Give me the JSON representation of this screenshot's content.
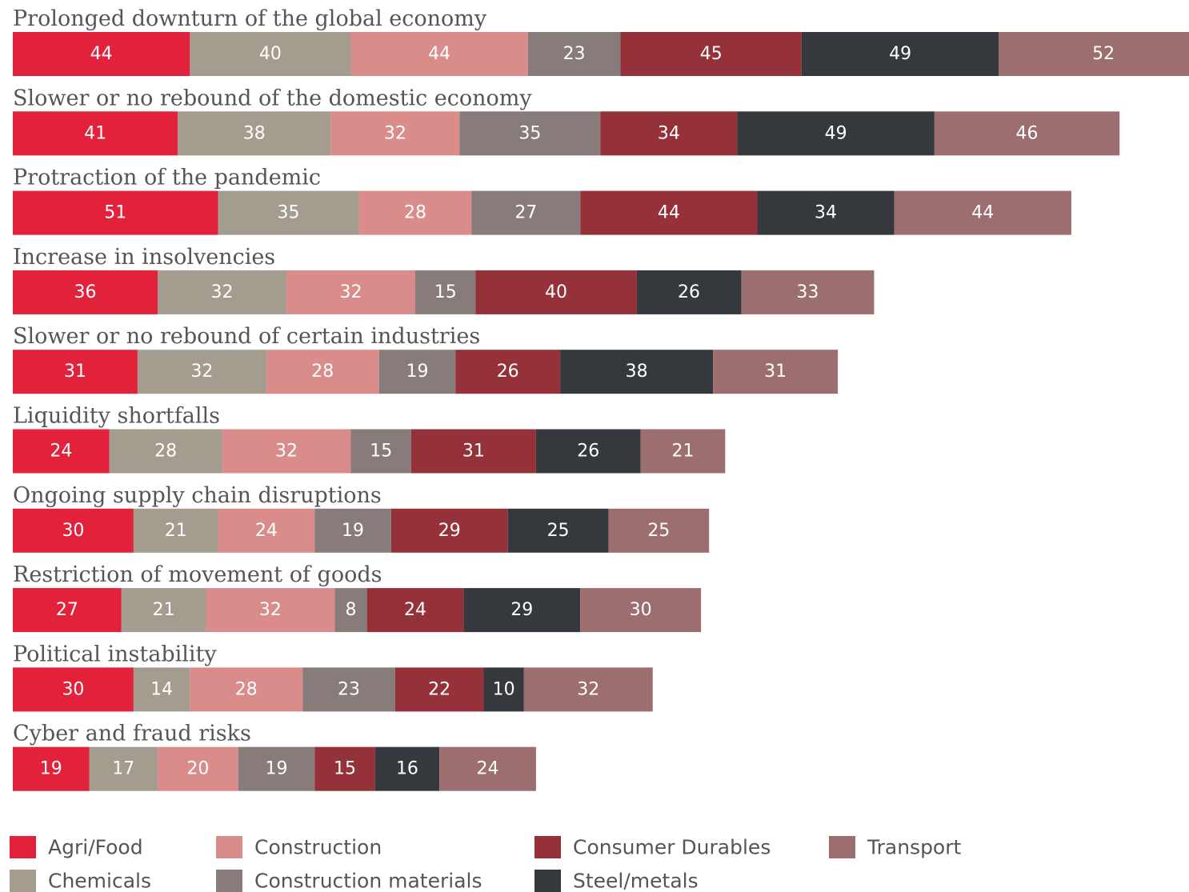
{
  "chart_data": {
    "type": "bar",
    "orientation": "horizontal",
    "stacked": true,
    "categories": [
      "Prolonged downturn of the global economy",
      "Slower or no rebound of the domestic economy",
      "Protraction of the pandemic",
      "Increase in insolvencies",
      "Slower or no rebound of certain industries",
      "Liquidity shortfalls",
      "Ongoing supply chain disruptions",
      "Restriction of movement of goods",
      "Political instability",
      "Cyber and fraud risks"
    ],
    "series": [
      {
        "name": "Agri/Food",
        "color": "#e2213a",
        "values": [
          44,
          41,
          51,
          36,
          31,
          24,
          30,
          27,
          30,
          19
        ]
      },
      {
        "name": "Chemicals",
        "color": "#a39c8f",
        "values": [
          40,
          38,
          35,
          32,
          32,
          28,
          21,
          21,
          14,
          17
        ]
      },
      {
        "name": "Construction",
        "color": "#d98c8a",
        "values": [
          44,
          32,
          28,
          32,
          28,
          32,
          24,
          32,
          28,
          20
        ]
      },
      {
        "name": "Construction materials",
        "color": "#877c7a",
        "values": [
          23,
          35,
          27,
          15,
          19,
          15,
          19,
          8,
          23,
          19
        ]
      },
      {
        "name": "Consumer Durables",
        "color": "#953138",
        "values": [
          45,
          34,
          44,
          40,
          26,
          31,
          29,
          24,
          22,
          15
        ]
      },
      {
        "name": "Steel/metals",
        "color": "#35383d",
        "values": [
          49,
          49,
          34,
          26,
          38,
          26,
          25,
          29,
          10,
          16
        ]
      },
      {
        "name": "Transport",
        "color": "#9c6e6f",
        "values": [
          52,
          46,
          44,
          33,
          31,
          21,
          25,
          30,
          32,
          24
        ]
      }
    ],
    "legend_position": "bottom",
    "grid": false
  }
}
